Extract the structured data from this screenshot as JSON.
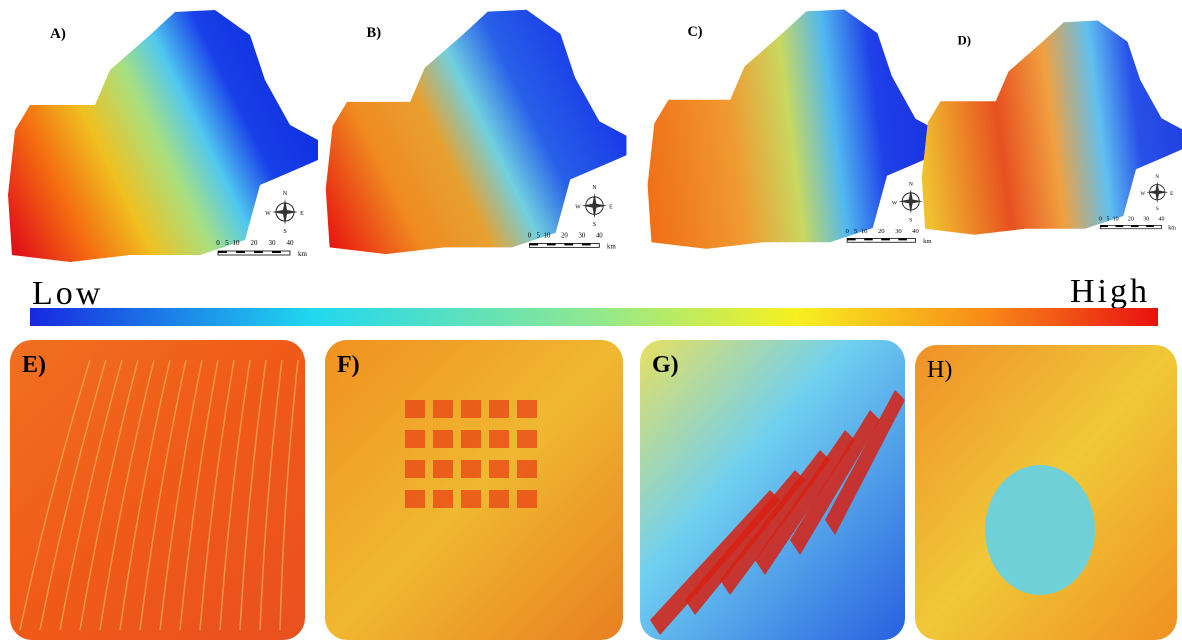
{
  "panels": [
    {
      "label": "A)"
    },
    {
      "label": "B)"
    },
    {
      "label": "C)"
    },
    {
      "label": "D)"
    }
  ],
  "scale_bar": {
    "ticks": [
      0,
      5,
      10,
      20,
      30,
      40
    ],
    "unit": "km"
  },
  "compass": {
    "n": "N",
    "s": "S",
    "e": "E",
    "w": "W"
  },
  "legend": {
    "low": "Low",
    "high": "High"
  },
  "zoom_panels": [
    {
      "label": "E)"
    },
    {
      "label": "F)"
    },
    {
      "label": "G)"
    },
    {
      "label": "H)"
    }
  ]
}
